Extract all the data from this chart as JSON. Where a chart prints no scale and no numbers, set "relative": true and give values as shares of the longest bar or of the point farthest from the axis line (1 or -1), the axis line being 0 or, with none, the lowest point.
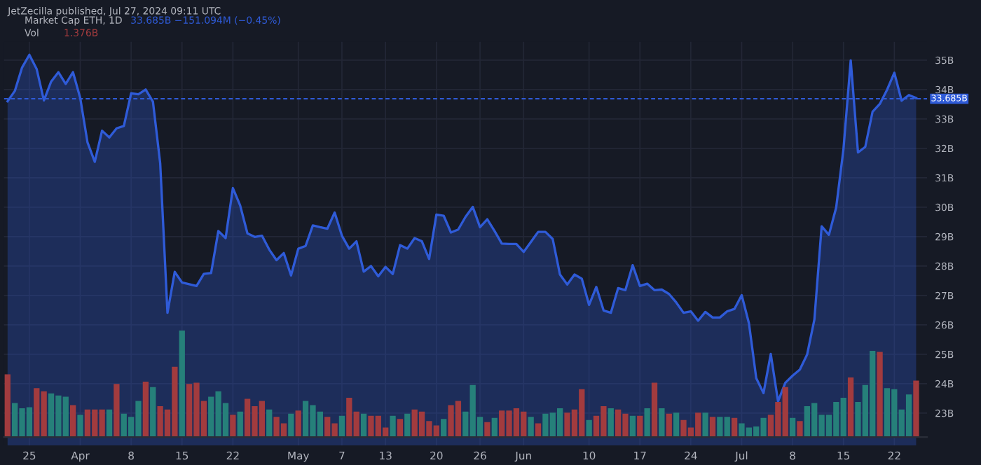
{
  "chart_data": [
    {
      "type": "area",
      "title": "Market Cap ETH, 1D",
      "annotations": [
        "JetZecilla published, Jul 27, 2024 09:11 UTC",
        "33.685B −151.094M (−0.45%)"
      ],
      "x": [
        "2024-03-22",
        "2024-03-23",
        "2024-03-24",
        "2024-03-25",
        "2024-03-26",
        "2024-03-27",
        "2024-03-28",
        "2024-03-29",
        "2024-03-30",
        "2024-03-31",
        "2024-04-01",
        "2024-04-02",
        "2024-04-03",
        "2024-04-04",
        "2024-04-05",
        "2024-04-06",
        "2024-04-07",
        "2024-04-08",
        "2024-04-09",
        "2024-04-10",
        "2024-04-11",
        "2024-04-12",
        "2024-04-13",
        "2024-04-14",
        "2024-04-15",
        "2024-04-16",
        "2024-04-17",
        "2024-04-18",
        "2024-04-19",
        "2024-04-20",
        "2024-04-21",
        "2024-04-22",
        "2024-04-23",
        "2024-04-24",
        "2024-04-25",
        "2024-04-26",
        "2024-04-27",
        "2024-04-28",
        "2024-04-29",
        "2024-04-30",
        "2024-05-01",
        "2024-05-02",
        "2024-05-03",
        "2024-05-04",
        "2024-05-05",
        "2024-05-06",
        "2024-05-07",
        "2024-05-08",
        "2024-05-09",
        "2024-05-10",
        "2024-05-11",
        "2024-05-12",
        "2024-05-13",
        "2024-05-14",
        "2024-05-15",
        "2024-05-16",
        "2024-05-17",
        "2024-05-18",
        "2024-05-19",
        "2024-05-20",
        "2024-05-21",
        "2024-05-22",
        "2024-05-23",
        "2024-05-24",
        "2024-05-25",
        "2024-05-26",
        "2024-05-27",
        "2024-05-28",
        "2024-05-29",
        "2024-05-30",
        "2024-05-31",
        "2024-06-01",
        "2024-06-02",
        "2024-06-03",
        "2024-06-04",
        "2024-06-05",
        "2024-06-06",
        "2024-06-07",
        "2024-06-08",
        "2024-06-09",
        "2024-06-10",
        "2024-06-11",
        "2024-06-12",
        "2024-06-13",
        "2024-06-14",
        "2024-06-15",
        "2024-06-16",
        "2024-06-17",
        "2024-06-18",
        "2024-06-19",
        "2024-06-20",
        "2024-06-21",
        "2024-06-22",
        "2024-06-23",
        "2024-06-24",
        "2024-06-25",
        "2024-06-26",
        "2024-06-27",
        "2024-06-28",
        "2024-06-29",
        "2024-06-30",
        "2024-07-01",
        "2024-07-02",
        "2024-07-03",
        "2024-07-04",
        "2024-07-05",
        "2024-07-06",
        "2024-07-07",
        "2024-07-08",
        "2024-07-09",
        "2024-07-10",
        "2024-07-11",
        "2024-07-12",
        "2024-07-13",
        "2024-07-14",
        "2024-07-15",
        "2024-07-16",
        "2024-07-17",
        "2024-07-18",
        "2024-07-19",
        "2024-07-20",
        "2024-07-21",
        "2024-07-22",
        "2024-07-23",
        "2024-07-24",
        "2024-07-25"
      ],
      "series": [
        {
          "color": "#2f5bd8",
          "values": [
            33.6,
            33.95,
            34.75,
            35.18,
            34.7,
            33.63,
            34.27,
            34.59,
            34.19,
            34.59,
            33.71,
            32.2,
            31.54,
            32.6,
            32.37,
            32.68,
            32.76,
            33.87,
            33.84,
            34.0,
            33.59,
            31.49,
            26.41,
            27.8,
            27.44,
            27.38,
            27.32,
            27.73,
            27.76,
            29.19,
            28.95,
            30.65,
            30.06,
            29.11,
            28.99,
            29.03,
            28.56,
            28.2,
            28.44,
            27.68,
            28.59,
            28.68,
            29.38,
            29.32,
            29.27,
            29.82,
            29.03,
            28.59,
            28.84,
            27.81,
            28.0,
            27.65,
            27.97,
            27.73,
            28.71,
            28.59,
            28.95,
            28.84,
            28.24,
            29.75,
            29.71,
            29.14,
            29.24,
            29.67,
            30.01,
            29.32,
            29.59,
            29.19,
            28.76,
            28.75,
            28.75,
            28.48,
            28.82,
            29.16,
            29.16,
            28.92,
            27.71,
            27.37,
            27.71,
            27.57,
            26.68,
            27.29,
            26.49,
            26.41,
            27.25,
            27.18,
            28.03,
            27.32,
            27.4,
            27.18,
            27.2,
            27.05,
            26.76,
            26.41,
            26.46,
            26.14,
            26.44,
            26.25,
            26.25,
            26.46,
            26.54,
            27.01,
            26.05,
            24.19,
            23.68,
            25.01,
            23.4,
            24.03,
            24.27,
            24.48,
            24.99,
            26.18,
            29.35,
            29.06,
            29.99,
            31.97,
            34.99,
            31.86,
            32.05,
            33.24,
            33.51,
            33.99,
            34.57,
            33.62,
            33.81,
            33.71
          ]
        }
      ],
      "xlim": [
        "2024-03-21T12:00",
        "2024-07-26T12:00"
      ],
      "xticks": [
        {
          "value": "2024-03-25",
          "label": "25"
        },
        {
          "value": "2024-04-01",
          "label": "Apr"
        },
        {
          "value": "2024-04-08",
          "label": "8"
        },
        {
          "value": "2024-04-15",
          "label": "15"
        },
        {
          "value": "2024-04-22",
          "label": "22"
        },
        {
          "value": "2024-05-01",
          "label": "May"
        },
        {
          "value": "2024-05-07",
          "label": "7"
        },
        {
          "value": "2024-05-13",
          "label": "13"
        },
        {
          "value": "2024-05-20",
          "label": "20"
        },
        {
          "value": "2024-05-26",
          "label": "26"
        },
        {
          "value": "2024-06-01",
          "label": "Jun"
        },
        {
          "value": "2024-06-10",
          "label": "10"
        },
        {
          "value": "2024-06-17",
          "label": "17"
        },
        {
          "value": "2024-06-24",
          "label": "24"
        },
        {
          "value": "2024-07-01",
          "label": "Jul"
        },
        {
          "value": "2024-07-08",
          "label": "8"
        },
        {
          "value": "2024-07-15",
          "label": "15"
        },
        {
          "value": "2024-07-22",
          "label": "22"
        }
      ],
      "ylim": [
        21.9,
        35.62
      ],
      "yticks": [
        {
          "value": 23,
          "label": "23B"
        },
        {
          "value": 24,
          "label": "24B"
        },
        {
          "value": 25,
          "label": "25B"
        },
        {
          "value": 26,
          "label": "26B"
        },
        {
          "value": 27,
          "label": "27B"
        },
        {
          "value": 28,
          "label": "28B"
        },
        {
          "value": 29,
          "label": "29B"
        },
        {
          "value": 30,
          "label": "30B"
        },
        {
          "value": 31,
          "label": "31B"
        },
        {
          "value": 32,
          "label": "32B"
        },
        {
          "value": 33,
          "label": "33B"
        },
        {
          "value": 34,
          "label": "34B"
        },
        {
          "value": 35,
          "label": "35B"
        }
      ],
      "ref_lines": [
        {
          "axis": "y",
          "value": 33.685,
          "label": "33.685B",
          "color": "#2f5bd8",
          "line_style": "dashed"
        }
      ],
      "grid": true,
      "legend": false
    },
    {
      "type": "bar",
      "title": "Vol",
      "relative": true,
      "annotations": [
        "1.376B"
      ],
      "tick_labels": false,
      "xlim": [
        "2024-03-21T12:00",
        "2024-07-26T12:00"
      ],
      "x": [
        "2024-03-22",
        "2024-03-23",
        "2024-03-24",
        "2024-03-25",
        "2024-03-26",
        "2024-03-27",
        "2024-03-28",
        "2024-03-29",
        "2024-03-30",
        "2024-03-31",
        "2024-04-01",
        "2024-04-02",
        "2024-04-03",
        "2024-04-04",
        "2024-04-05",
        "2024-04-06",
        "2024-04-07",
        "2024-04-08",
        "2024-04-09",
        "2024-04-10",
        "2024-04-11",
        "2024-04-12",
        "2024-04-13",
        "2024-04-14",
        "2024-04-15",
        "2024-04-16",
        "2024-04-17",
        "2024-04-18",
        "2024-04-19",
        "2024-04-20",
        "2024-04-21",
        "2024-04-22",
        "2024-04-23",
        "2024-04-24",
        "2024-04-25",
        "2024-04-26",
        "2024-04-27",
        "2024-04-28",
        "2024-04-29",
        "2024-04-30",
        "2024-05-01",
        "2024-05-02",
        "2024-05-03",
        "2024-05-04",
        "2024-05-05",
        "2024-05-06",
        "2024-05-07",
        "2024-05-08",
        "2024-05-09",
        "2024-05-10",
        "2024-05-11",
        "2024-05-12",
        "2024-05-13",
        "2024-05-14",
        "2024-05-15",
        "2024-05-16",
        "2024-05-17",
        "2024-05-18",
        "2024-05-19",
        "2024-05-20",
        "2024-05-21",
        "2024-05-22",
        "2024-05-23",
        "2024-05-24",
        "2024-05-25",
        "2024-05-26",
        "2024-05-27",
        "2024-05-28",
        "2024-05-29",
        "2024-05-30",
        "2024-05-31",
        "2024-06-01",
        "2024-06-02",
        "2024-06-03",
        "2024-06-04",
        "2024-06-05",
        "2024-06-06",
        "2024-06-07",
        "2024-06-08",
        "2024-06-09",
        "2024-06-10",
        "2024-06-11",
        "2024-06-12",
        "2024-06-13",
        "2024-06-14",
        "2024-06-15",
        "2024-06-16",
        "2024-06-17",
        "2024-06-18",
        "2024-06-19",
        "2024-06-20",
        "2024-06-21",
        "2024-06-22",
        "2024-06-23",
        "2024-06-24",
        "2024-06-25",
        "2024-06-26",
        "2024-06-27",
        "2024-06-28",
        "2024-06-29",
        "2024-06-30",
        "2024-07-01",
        "2024-07-02",
        "2024-07-03",
        "2024-07-04",
        "2024-07-05",
        "2024-07-06",
        "2024-07-07",
        "2024-07-08",
        "2024-07-09",
        "2024-07-10",
        "2024-07-11",
        "2024-07-12",
        "2024-07-13",
        "2024-07-14",
        "2024-07-15",
        "2024-07-16",
        "2024-07-17",
        "2024-07-18",
        "2024-07-19",
        "2024-07-20",
        "2024-07-21",
        "2024-07-22",
        "2024-07-23",
        "2024-07-24",
        "2024-07-25"
      ],
      "values": [
        0.59,
        0.32,
        0.27,
        0.28,
        0.46,
        0.43,
        0.41,
        0.39,
        0.38,
        0.3,
        0.21,
        0.26,
        0.26,
        0.26,
        0.26,
        0.5,
        0.22,
        0.19,
        0.34,
        0.52,
        0.47,
        0.29,
        0.26,
        0.66,
        1,
        0.5,
        0.51,
        0.34,
        0.38,
        0.43,
        0.32,
        0.21,
        0.24,
        0.36,
        0.29,
        0.34,
        0.26,
        0.19,
        0.13,
        0.22,
        0.25,
        0.34,
        0.3,
        0.24,
        0.19,
        0.13,
        0.2,
        0.37,
        0.24,
        0.22,
        0.2,
        0.2,
        0.09,
        0.2,
        0.17,
        0.22,
        0.26,
        0.24,
        0.15,
        0.11,
        0.17,
        0.3,
        0.34,
        0.24,
        0.49,
        0.19,
        0.14,
        0.18,
        0.25,
        0.25,
        0.27,
        0.24,
        0.19,
        0.13,
        0.22,
        0.23,
        0.27,
        0.23,
        0.26,
        0.45,
        0.16,
        0.2,
        0.29,
        0.27,
        0.26,
        0.22,
        0.2,
        0.2,
        0.27,
        0.51,
        0.27,
        0.22,
        0.23,
        0.16,
        0.09,
        0.23,
        0.23,
        0.19,
        0.19,
        0.19,
        0.18,
        0.13,
        0.09,
        0.1,
        0.18,
        0.21,
        0.33,
        0.47,
        0.18,
        0.15,
        0.29,
        0.32,
        0.21,
        0.21,
        0.33,
        0.37,
        0.56,
        0.33,
        0.49,
        0.81,
        0.8,
        0.46,
        0.45,
        0.26,
        0.4,
        0.53
      ],
      "colors": [
        "#a23b3e",
        "#26807a",
        "#26807a",
        "#26807a",
        "#a23b3e",
        "#a23b3e",
        "#26807a",
        "#26807a",
        "#26807a",
        "#a23b3e",
        "#26807a",
        "#a23b3e",
        "#a23b3e",
        "#a23b3e",
        "#26807a",
        "#a23b3e",
        "#26807a",
        "#26807a",
        "#26807a",
        "#a23b3e",
        "#26807a",
        "#a23b3e",
        "#a23b3e",
        "#a23b3e",
        "#26807a",
        "#a23b3e",
        "#a23b3e",
        "#a23b3e",
        "#26807a",
        "#26807a",
        "#26807a",
        "#a23b3e",
        "#26807a",
        "#a23b3e",
        "#a23b3e",
        "#a23b3e",
        "#26807a",
        "#a23b3e",
        "#a23b3e",
        "#26807a",
        "#a23b3e",
        "#26807a",
        "#26807a",
        "#26807a",
        "#a23b3e",
        "#a23b3e",
        "#26807a",
        "#a23b3e",
        "#a23b3e",
        "#26807a",
        "#a23b3e",
        "#a23b3e",
        "#a23b3e",
        "#26807a",
        "#a23b3e",
        "#26807a",
        "#a23b3e",
        "#a23b3e",
        "#a23b3e",
        "#a23b3e",
        "#26807a",
        "#a23b3e",
        "#a23b3e",
        "#26807a",
        "#26807a",
        "#26807a",
        "#a23b3e",
        "#26807a",
        "#a23b3e",
        "#a23b3e",
        "#a23b3e",
        "#a23b3e",
        "#26807a",
        "#a23b3e",
        "#26807a",
        "#26807a",
        "#26807a",
        "#a23b3e",
        "#a23b3e",
        "#a23b3e",
        "#26807a",
        "#a23b3e",
        "#a23b3e",
        "#26807a",
        "#a23b3e",
        "#a23b3e",
        "#26807a",
        "#a23b3e",
        "#26807a",
        "#a23b3e",
        "#26807a",
        "#a23b3e",
        "#26807a",
        "#a23b3e",
        "#a23b3e",
        "#a23b3e",
        "#26807a",
        "#a23b3e",
        "#26807a",
        "#26807a",
        "#a23b3e",
        "#26807a",
        "#26807a",
        "#26807a",
        "#26807a",
        "#a23b3e",
        "#a23b3e",
        "#a23b3e",
        "#26807a",
        "#a23b3e",
        "#26807a",
        "#26807a",
        "#26807a",
        "#26807a",
        "#26807a",
        "#26807a",
        "#a23b3e",
        "#26807a",
        "#26807a",
        "#26807a",
        "#a23b3e",
        "#26807a",
        "#26807a",
        "#26807a",
        "#26807a",
        "#a23b3e"
      ]
    }
  ]
}
